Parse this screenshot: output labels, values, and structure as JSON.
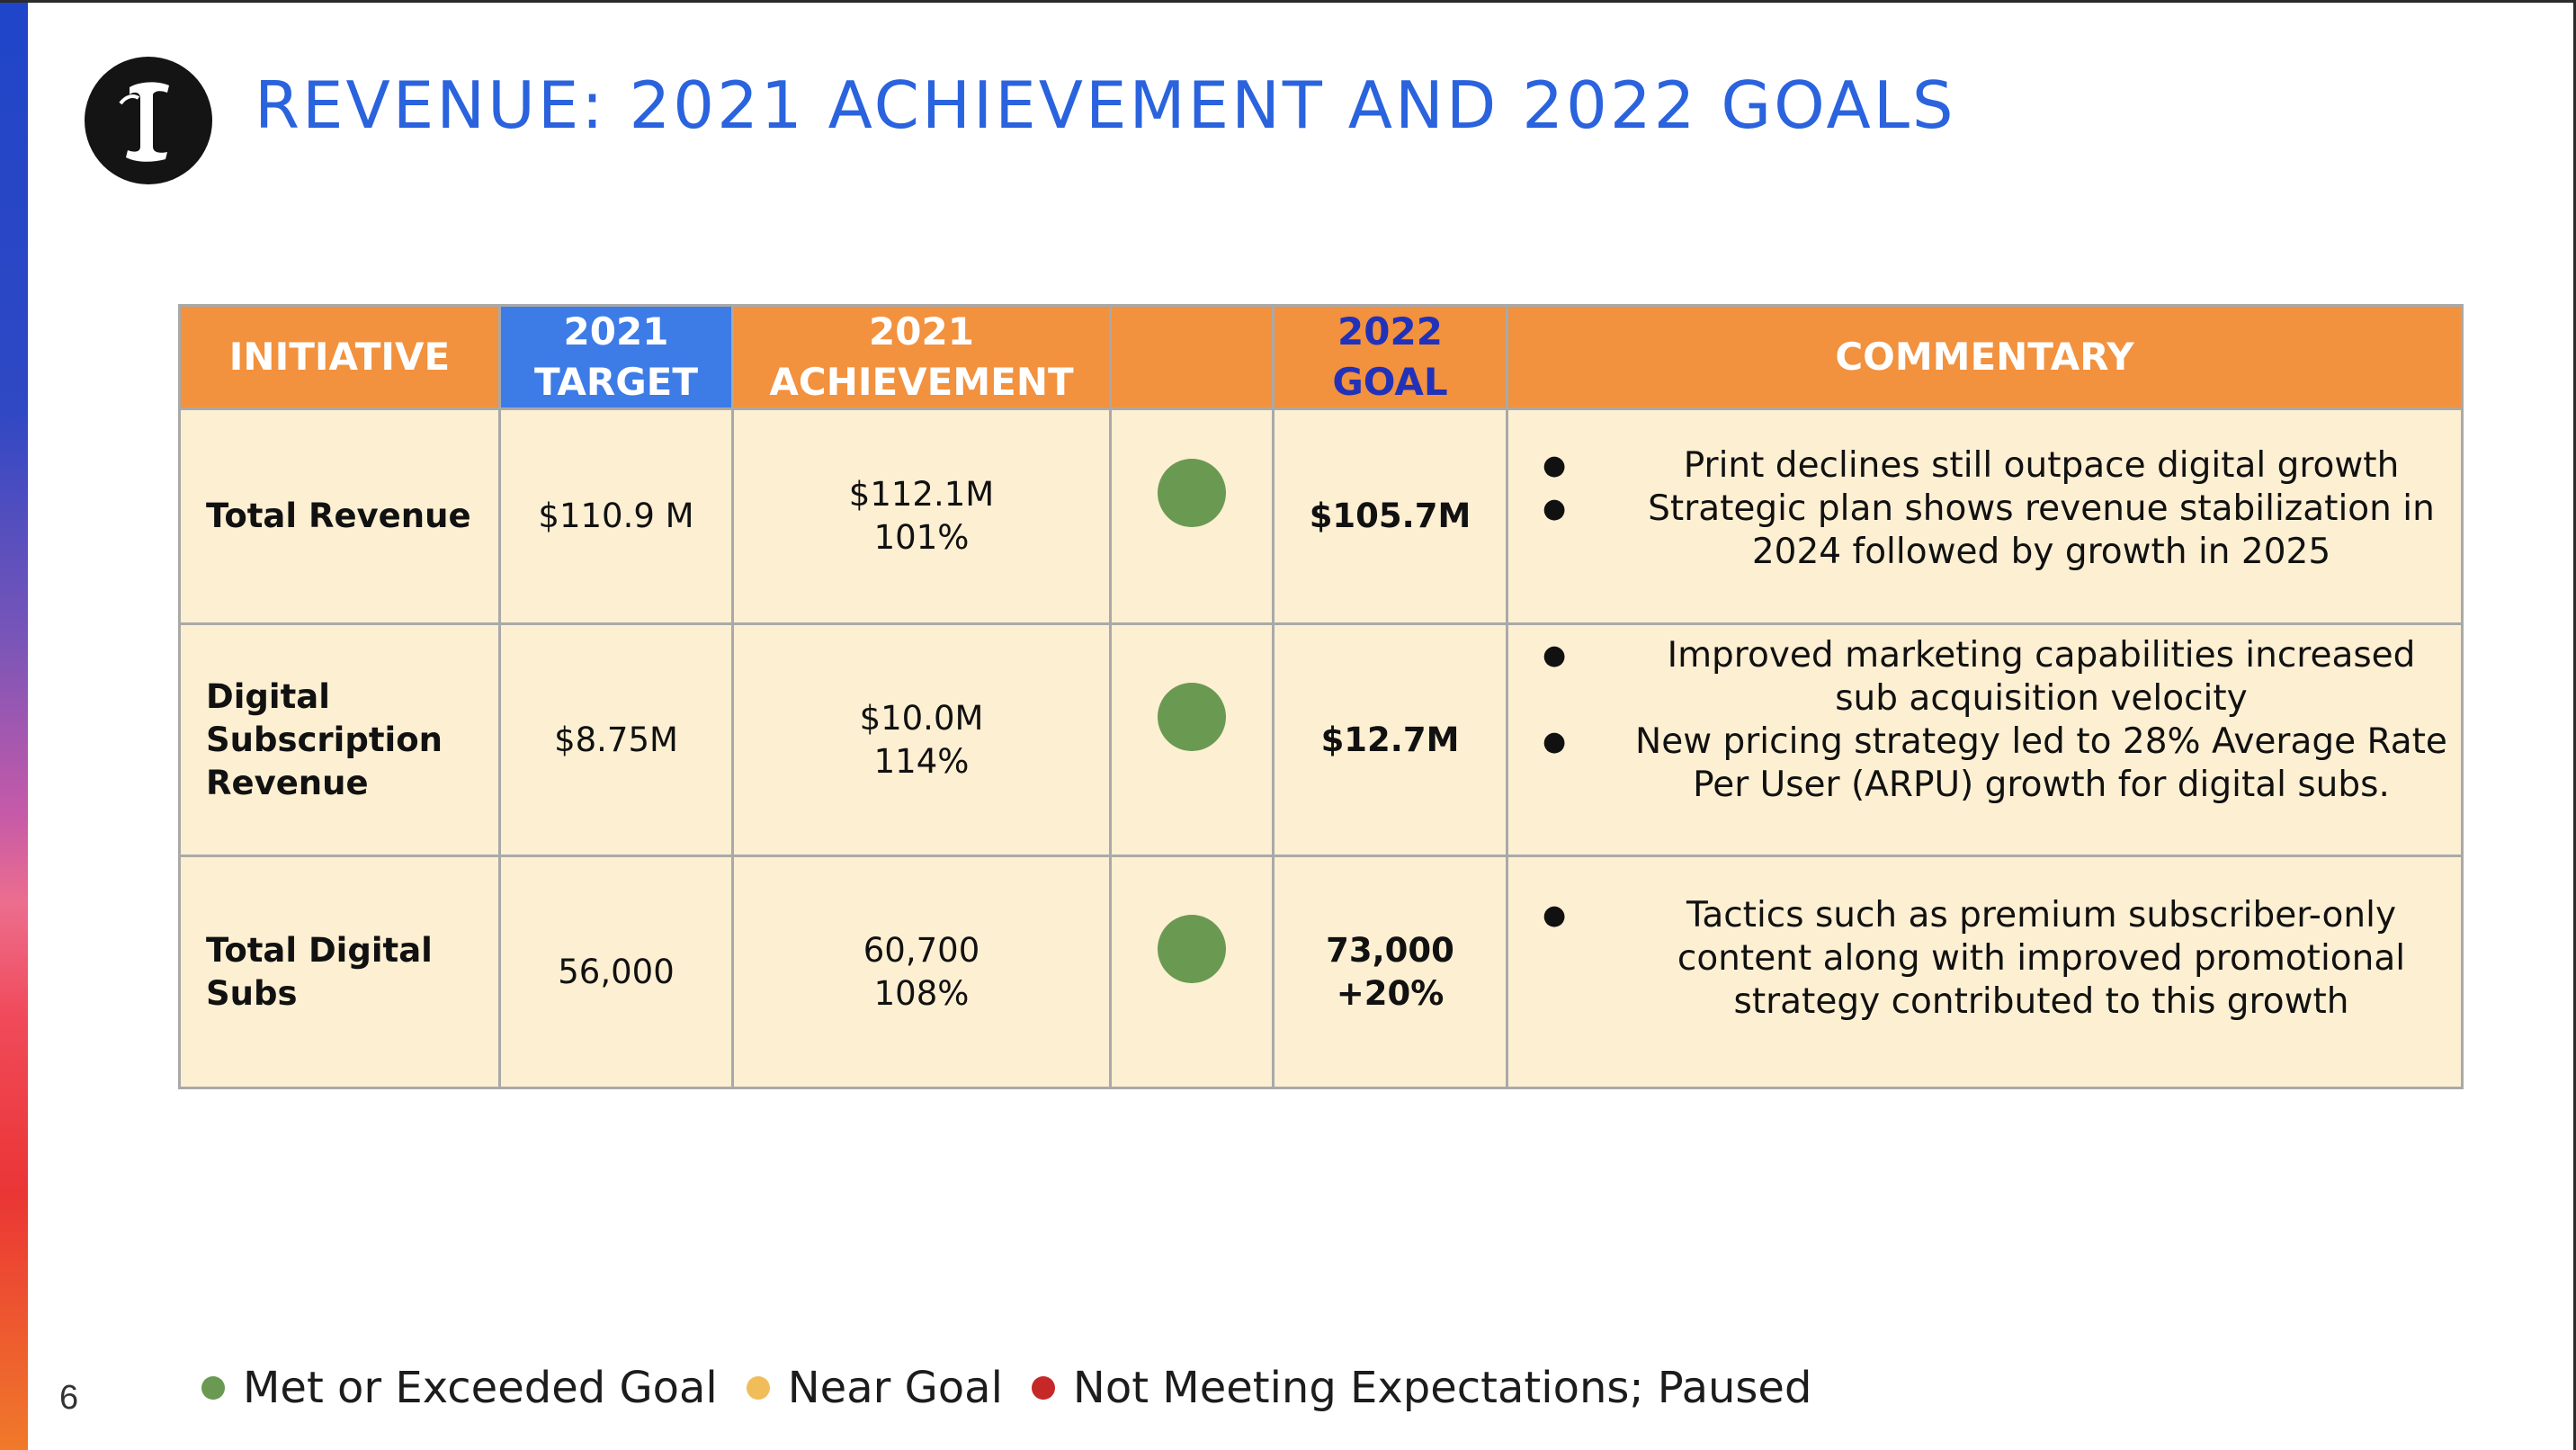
{
  "slide": {
    "title": "REVENUE: 2021 ACHIEVEMENT AND 2022 GOALS",
    "page_number": "6",
    "logo_text": "I"
  },
  "table": {
    "headers": {
      "initiative": "INITIATIVE",
      "target_year": "2021",
      "target_label": "TARGET",
      "achievement_year": "2021",
      "achievement_label": "ACHIEVEMENT",
      "status": "",
      "goal_year": "2022",
      "goal_label": "GOAL",
      "commentary": "COMMENTARY"
    },
    "rows": [
      {
        "initiative_lines": [
          "Total Revenue"
        ],
        "target": "$110.9 M",
        "achievement_value": "$112.1M",
        "achievement_pct": "101%",
        "status": "Met or Exceeded Goal",
        "goal_lines": [
          "$105.7M"
        ],
        "commentary": [
          "Print declines still outpace digital growth",
          "Strategic plan shows revenue stabilization in 2024 followed by growth in 2025"
        ]
      },
      {
        "initiative_lines": [
          "Digital",
          "Subscription",
          "Revenue"
        ],
        "target": "$8.75M",
        "achievement_value": "$10.0M",
        "achievement_pct": "114%",
        "status": "Met or Exceeded Goal",
        "goal_lines": [
          "$12.7M"
        ],
        "commentary": [
          "Improved marketing capabilities increased sub acquisition velocity",
          "New pricing strategy led to 28% Average Rate Per User (ARPU) growth for digital subs."
        ]
      },
      {
        "initiative_lines": [
          "Total Digital",
          "Subs"
        ],
        "target": "56,000",
        "achievement_value": "60,700",
        "achievement_pct": "108%",
        "status": "Met or Exceeded Goal",
        "goal_lines": [
          "73,000",
          "+20%"
        ],
        "commentary": [
          "Tactics such as premium subscriber-only content along with improved promotional strategy contributed to this growth"
        ]
      }
    ]
  },
  "legend": [
    {
      "label": "Met or Exceeded Goal",
      "color": "#6a9a52"
    },
    {
      "label": "Near Goal",
      "color": "#f0bd5a"
    },
    {
      "label": "Not Meeting Expectations; Paused",
      "color": "#c62828"
    }
  ],
  "colors": {
    "title": "#2a63dd",
    "header_orange": "#f2913e",
    "header_blue": "#3d7be7",
    "goal_header_text": "#2232b8",
    "cell_background": "#fdefd2",
    "status_green": "#6a9a52"
  }
}
